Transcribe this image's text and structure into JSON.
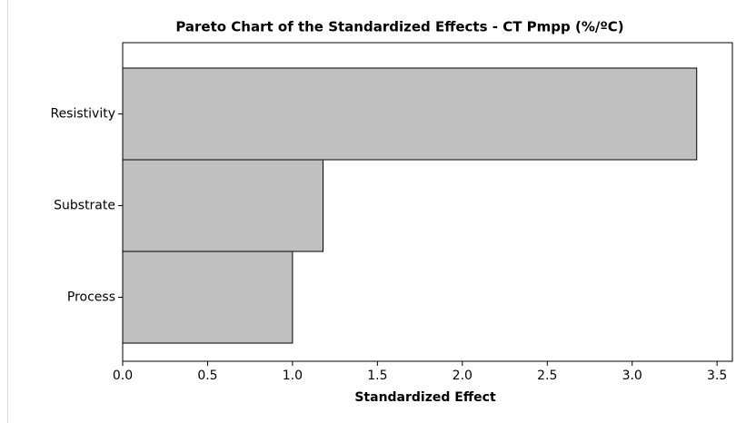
{
  "chart_data": {
    "type": "barh",
    "title": "Pareto Chart of the Standardized Effects - CT Pmpp (%/ºC)",
    "x_label": "Standardized Effect",
    "categories": [
      "Resistivity",
      "Substrate",
      "Process"
    ],
    "values": [
      3.38,
      1.18,
      1.0
    ],
    "color": "#c0c0c0",
    "xlim": [
      0,
      3.59
    ],
    "xticks": [
      {
        "value": 0,
        "label": "0.0"
      },
      0.5,
      {
        "value": 1,
        "label": "1.0"
      },
      1.5,
      {
        "value": 2,
        "label": "2.0"
      },
      2.5,
      {
        "value": 3,
        "label": "3.0"
      },
      3.5
    ]
  }
}
